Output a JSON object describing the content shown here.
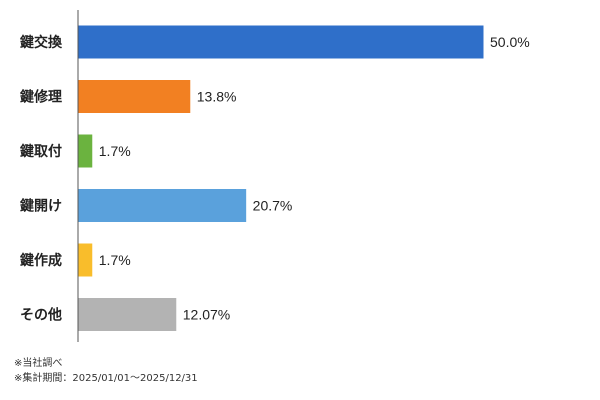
{
  "chart_data": {
    "type": "bar",
    "orientation": "horizontal",
    "categories": [
      "鍵交換",
      "鍵修理",
      "鍵取付",
      "鍵開け",
      "鍵作成",
      "その他"
    ],
    "values": [
      50.0,
      13.8,
      1.7,
      20.7,
      1.7,
      12.07
    ],
    "value_labels": [
      "50.0%",
      "13.8%",
      "1.7%",
      "20.7%",
      "1.7%",
      "12.07%"
    ],
    "colors": [
      "#2f6fc9",
      "#f28022",
      "#6bb33f",
      "#5aa1dc",
      "#f9bd2b",
      "#b3b3b3"
    ],
    "xlim": [
      0,
      50
    ],
    "grid": false,
    "legend": "none"
  },
  "notes": {
    "source": "※当社調べ",
    "period": "※集計期間：2025/01/01～2025/12/31"
  }
}
